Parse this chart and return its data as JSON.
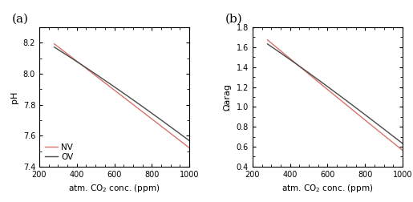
{
  "panel_a": {
    "label": "(a)",
    "ylabel": "pH",
    "xlabel": "atm. CO$_2$ conc. (ppm)",
    "xlim": [
      200,
      1000
    ],
    "ylim": [
      7.4,
      8.3
    ],
    "yticks": [
      7.4,
      7.6,
      7.8,
      8.0,
      8.2
    ],
    "xticks": [
      200,
      400,
      600,
      800,
      1000
    ],
    "nv_color": "#d9736a",
    "ov_color": "#4a4a4a",
    "legend_loc": "lower left"
  },
  "panel_b": {
    "label": "(b)",
    "ylabel": "Ωarag",
    "xlabel": "atm. CO$_2$ conc. (ppm)",
    "xlim": [
      200,
      1000
    ],
    "ylim": [
      0.4,
      1.8
    ],
    "yticks": [
      0.4,
      0.6,
      0.8,
      1.0,
      1.2,
      1.4,
      1.6,
      1.8
    ],
    "xticks": [
      200,
      400,
      600,
      800,
      1000
    ],
    "nv_color": "#d9736a",
    "ov_color": "#4a4a4a"
  },
  "background_color": "#ffffff",
  "linewidth": 1.0,
  "co2_start": 280,
  "co2_end": 1000
}
